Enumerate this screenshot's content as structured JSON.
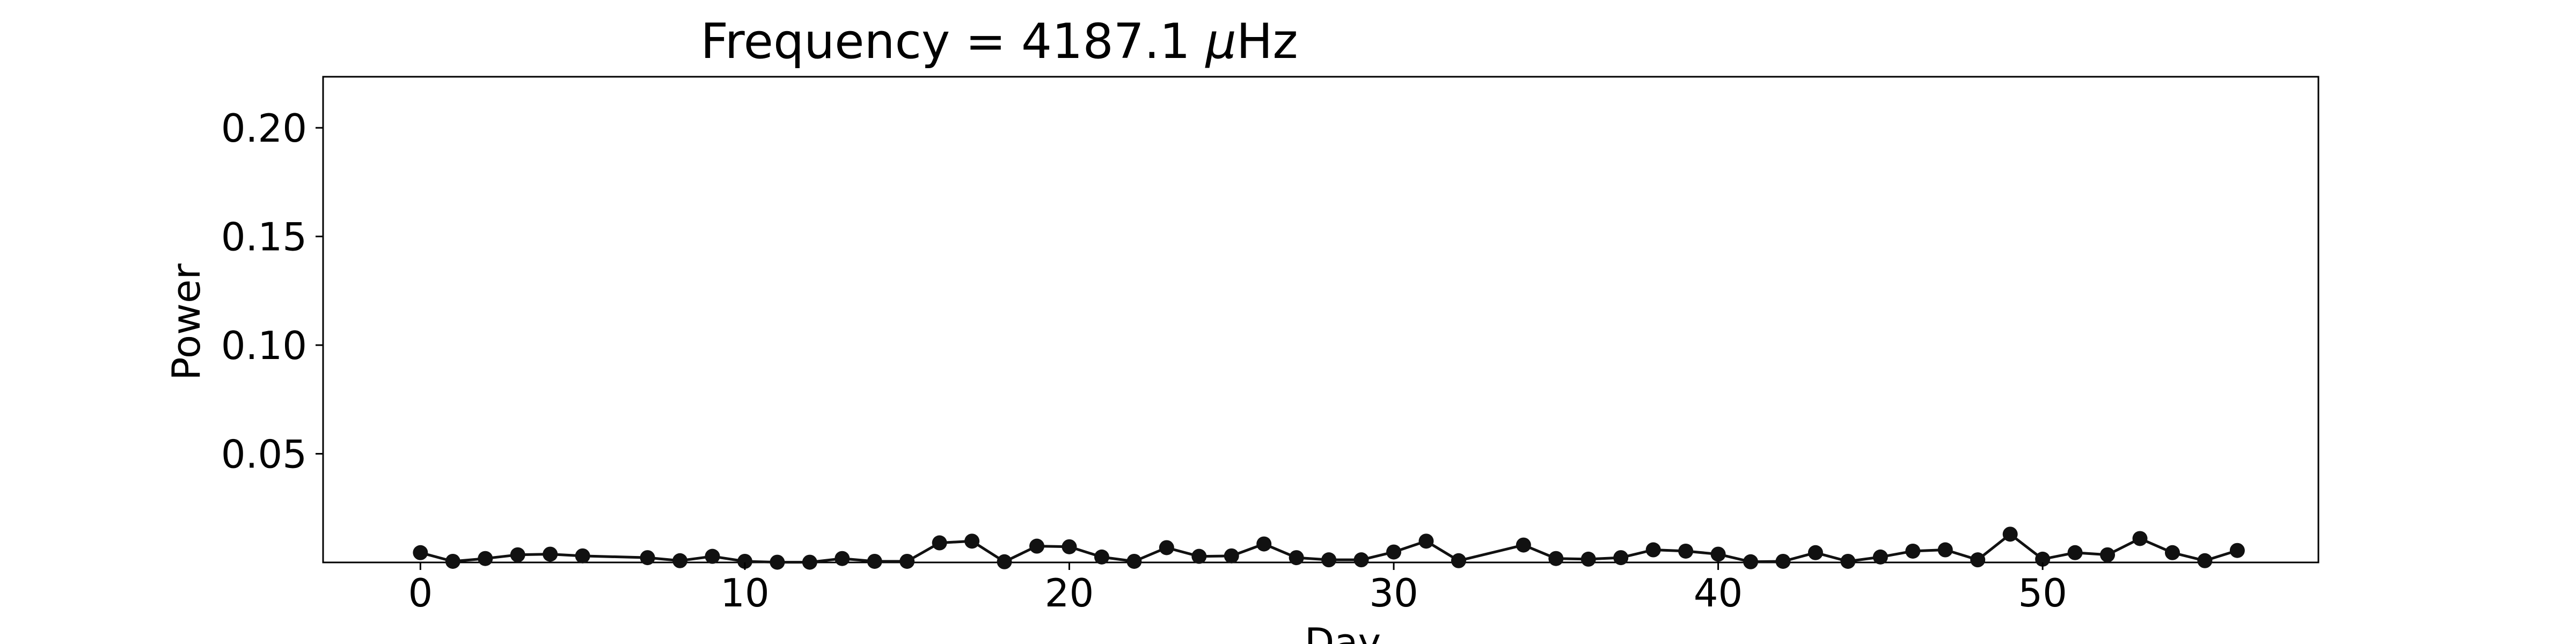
{
  "chart_data": {
    "type": "line",
    "title_prefix": "Frequency = 4187.1 ",
    "title_mu": "μ",
    "title_unit": "Hz",
    "xlabel": "Day",
    "ylabel": "Power",
    "xlim": [
      -3,
      58.5
    ],
    "ylim": [
      0,
      0.2235
    ],
    "xticks": [
      0,
      10,
      20,
      30,
      40,
      50
    ],
    "xtick_labels": [
      "0",
      "10",
      "20",
      "30",
      "40",
      "50"
    ],
    "yticks": [
      0.05,
      0.1,
      0.15,
      0.2
    ],
    "ytick_labels": [
      "0.05",
      "0.10",
      "0.15",
      "0.20"
    ],
    "grid": false,
    "marker": "circle",
    "series": [
      {
        "name": "power",
        "color": "#111111",
        "x": [
          0,
          1,
          2,
          3,
          4,
          5,
          7,
          8,
          9,
          10,
          11,
          12,
          13,
          14,
          15,
          16,
          17,
          18,
          19,
          20,
          21,
          22,
          23,
          24,
          25,
          26,
          27,
          28,
          29,
          30,
          31,
          32,
          34,
          35,
          36,
          37,
          38,
          39,
          40,
          41,
          42,
          43,
          44,
          45,
          46,
          47,
          48,
          49,
          50,
          51,
          52,
          53,
          54,
          55,
          56
        ],
        "values": [
          0.0045,
          0.0005,
          0.0018,
          0.0035,
          0.0038,
          0.003,
          0.0022,
          0.0008,
          0.0028,
          0.0005,
          0.0001,
          0.0001,
          0.0018,
          0.0005,
          0.0005,
          0.009,
          0.0098,
          0.0003,
          0.0075,
          0.0072,
          0.0025,
          0.0005,
          0.0068,
          0.0028,
          0.003,
          0.0085,
          0.0022,
          0.0012,
          0.0012,
          0.0048,
          0.0098,
          0.0008,
          0.008,
          0.0018,
          0.0015,
          0.0022,
          0.0058,
          0.0052,
          0.0038,
          0.0003,
          0.0005,
          0.0045,
          0.0005,
          0.0025,
          0.0052,
          0.0058,
          0.0012,
          0.013,
          0.0015,
          0.0045,
          0.0035,
          0.011,
          0.0045,
          0.0008,
          0.0055
        ]
      }
    ]
  }
}
